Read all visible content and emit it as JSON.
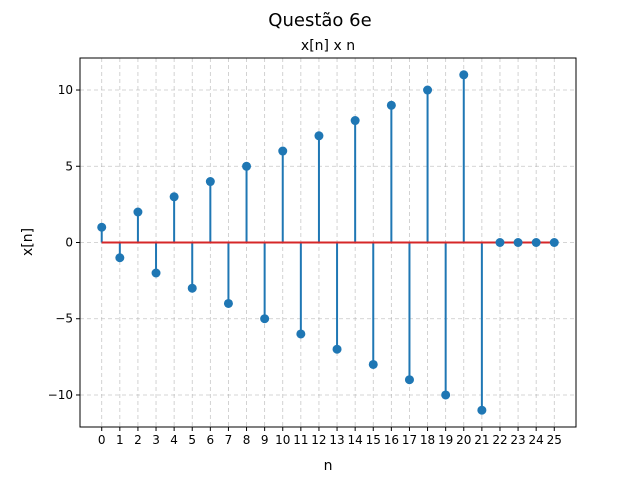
{
  "chart_data": {
    "type": "stem",
    "suptitle": "Questão 6e",
    "title": "x[n] x n",
    "xlabel": "n",
    "ylabel": "x[n]",
    "x": [
      0,
      1,
      2,
      3,
      4,
      5,
      6,
      7,
      8,
      9,
      10,
      11,
      12,
      13,
      14,
      15,
      16,
      17,
      18,
      19,
      20,
      21,
      22,
      23,
      24,
      25
    ],
    "values": [
      1,
      -1,
      2,
      -2,
      3,
      -3,
      4,
      -4,
      5,
      -5,
      6,
      -6,
      7,
      -7,
      8,
      -8,
      9,
      -9,
      10,
      -10,
      11,
      -11,
      0,
      0,
      0,
      0
    ],
    "xlim": [
      -1.2,
      26.2
    ],
    "ylim": [
      -12.1,
      12.1
    ],
    "yticks": [
      -10,
      -5,
      0,
      5,
      10
    ],
    "ytick_labels": [
      "−10",
      "−5",
      "0",
      "5",
      "10"
    ],
    "grid": true,
    "grid_style": "dashed",
    "stem_color": "#1f77b4",
    "baseline_color": "#d62728"
  }
}
